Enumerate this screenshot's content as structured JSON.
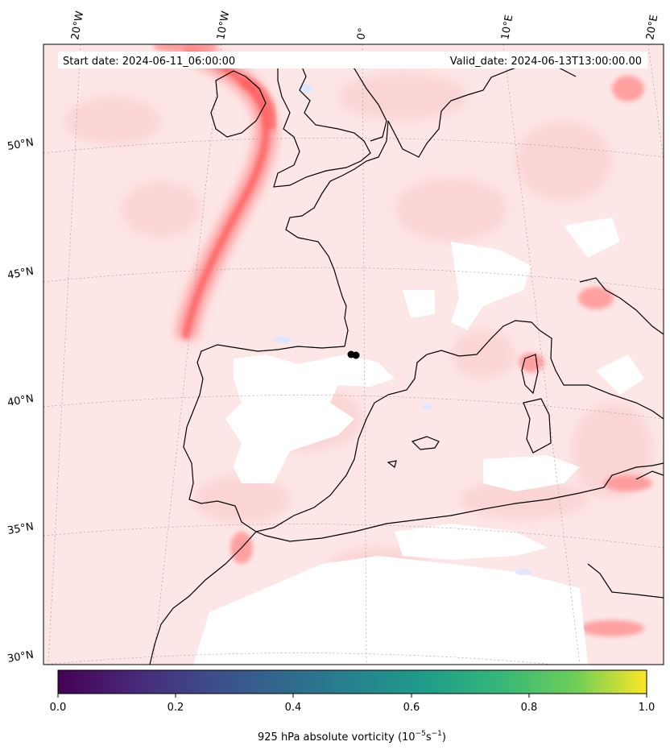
{
  "map": {
    "start_date": "Start date: 2024-06-11_06:00:00",
    "valid_date": "Valid_date: 2024-06-13T13:00:00.00",
    "longitude_labels": [
      "20°W",
      "10°W",
      "0°",
      "10°E",
      "20°E"
    ],
    "latitude_labels": [
      "50°N",
      "45°N",
      "40°N",
      "35°N",
      "30°N"
    ],
    "field": "925 hPa absolute vorticity",
    "colors": {
      "positive_vorticity": "#ff5c5c",
      "light_positive": "#fde3e3",
      "negative_vorticity": "#dfe7ff",
      "coastline": "#000000"
    }
  },
  "colorbar": {
    "colormap": "viridis",
    "range": [
      0.0,
      1.0
    ],
    "ticks": [
      "0.0",
      "0.2",
      "0.4",
      "0.6",
      "0.8",
      "1.0"
    ],
    "label": "925 hPa absolute vorticity (10",
    "label_exp1": "−5",
    "label_mid": "s",
    "label_exp2": "−1",
    "label_end": ")"
  }
}
